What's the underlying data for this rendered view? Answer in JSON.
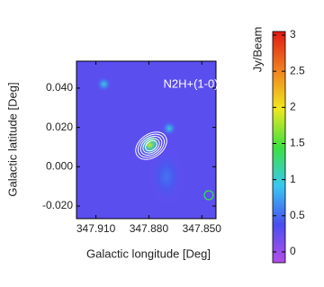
{
  "chart_data": {
    "type": "image",
    "annotation": "N2H+(1-0)",
    "xlabel": "Galactic longitude [Deg]",
    "ylabel": "Galactic latitude [Deg]",
    "xlim": [
      347.921,
      347.842
    ],
    "ylim": [
      -0.0264,
      0.0537
    ],
    "xticks": [
      {
        "value": 347.91,
        "label": "347.910"
      },
      {
        "value": 347.88,
        "label": "347.880"
      },
      {
        "value": 347.85,
        "label": "347.850"
      }
    ],
    "yticks": [
      {
        "value": 0.04,
        "label": "0.040"
      },
      {
        "value": 0.02,
        "label": "0.020"
      },
      {
        "value": 0,
        "label": "0.000"
      },
      {
        "value": -0.02,
        "label": "-0.020"
      }
    ],
    "colorbar_label": "Jy/Beam",
    "clim": [
      -0.15,
      3.05
    ],
    "cticks": [
      0,
      0.5,
      1,
      1.5,
      2,
      2.5,
      3
    ],
    "colormap": [
      "#b44ee8",
      "#4a4ef0",
      "#38c8f0",
      "#3ee040",
      "#f0e81e",
      "#f08020",
      "#e01a14"
    ],
    "background": 0.3,
    "peaks": [
      {
        "x": 347.8785,
        "y": 0.0125,
        "value": 3.0
      },
      {
        "x": 347.8795,
        "y": 0.011,
        "value": 1.9
      },
      {
        "x": 347.9055,
        "y": 0.042,
        "value": 1.0
      },
      {
        "x": 347.8685,
        "y": 0.0195,
        "value": 1.0
      },
      {
        "x": 347.87,
        "y": -0.005,
        "value": 0.55
      }
    ]
  }
}
